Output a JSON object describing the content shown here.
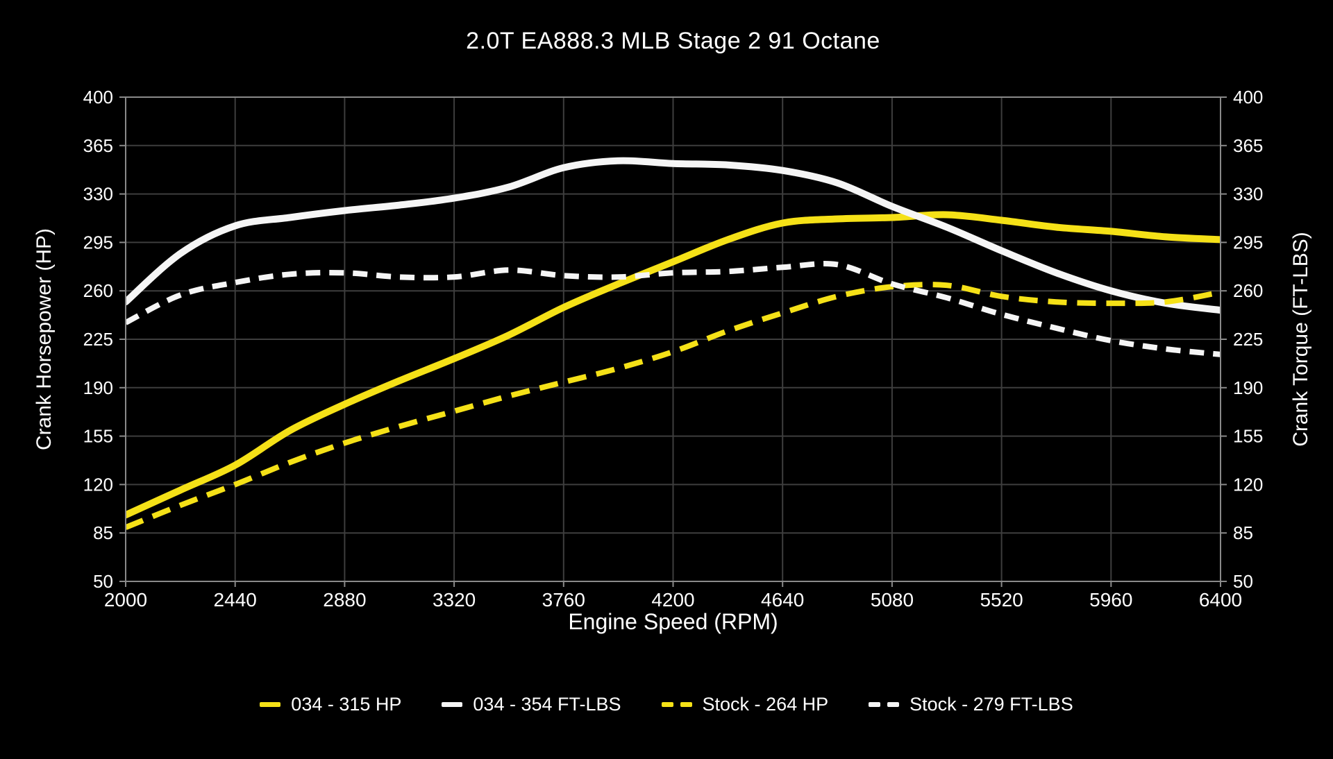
{
  "chart": {
    "title": "2.0T EA888.3 MLB Stage 2 91 Octane"
  },
  "axes": {
    "left_label": "Crank Horsepower (HP)",
    "right_label": "Crank Torque (FT-LBS)",
    "x_label": "Engine Speed (RPM)"
  },
  "colors": {
    "background": "#000000",
    "text": "#ffffff",
    "grid": "#3e3e3e",
    "border": "#8a8a8a",
    "yellow": "#f5e117",
    "white": "#f5f5f5"
  },
  "legend": {
    "items": [
      {
        "label": "034 - 315 HP",
        "color": "#f5e117",
        "style": "solid"
      },
      {
        "label": "034 - 354 FT-LBS",
        "color": "#f5f5f5",
        "style": "solid"
      },
      {
        "label": "Stock - 264 HP",
        "color": "#f5e117",
        "style": "dashed"
      },
      {
        "label": "Stock - 279 FT-LBS",
        "color": "#f5f5f5",
        "style": "dashed"
      }
    ]
  },
  "chart_data": {
    "type": "line",
    "title": "2.0T EA888.3 MLB Stage 2 91 Octane",
    "xlabel": "Engine Speed (RPM)",
    "ylabel_left": "Crank Horsepower (HP)",
    "ylabel_right": "Crank Torque (FT-LBS)",
    "xlim": [
      2000,
      6400
    ],
    "ylim": [
      50,
      400
    ],
    "x_ticks": [
      2000,
      2440,
      2880,
      3320,
      3760,
      4200,
      4640,
      5080,
      5520,
      5960,
      6400
    ],
    "y_ticks": [
      50,
      85,
      120,
      155,
      190,
      225,
      260,
      295,
      330,
      365,
      400
    ],
    "grid": true,
    "legend_position": "bottom",
    "x": [
      2000,
      2220,
      2440,
      2660,
      2880,
      3100,
      3320,
      3540,
      3760,
      3980,
      4200,
      4420,
      4640,
      4860,
      5080,
      5300,
      5520,
      5740,
      5960,
      6180,
      6400
    ],
    "series": [
      {
        "name": "034 - 315 HP",
        "axis": "HP",
        "peak": 315,
        "color": "#f5e117",
        "style": "solid",
        "width": 10,
        "values": [
          98,
          116,
          134,
          159,
          178,
          195,
          211,
          228,
          248,
          265,
          281,
          297,
          309,
          312,
          313,
          315,
          311,
          306,
          303,
          299,
          297
        ]
      },
      {
        "name": "034 - 354 FT-LBS",
        "axis": "FT-LBS",
        "peak": 354,
        "color": "#f5f5f5",
        "style": "solid",
        "width": 10,
        "values": [
          252,
          287,
          307,
          313,
          318,
          322,
          327,
          335,
          349,
          354,
          352,
          351,
          347,
          338,
          321,
          306,
          289,
          273,
          260,
          251,
          246
        ]
      },
      {
        "name": "Stock - 264 HP",
        "axis": "HP",
        "peak": 264,
        "color": "#f5e117",
        "style": "dashed",
        "dash": "27 15",
        "width": 8,
        "values": [
          89,
          105,
          120,
          136,
          150,
          162,
          173,
          184,
          194,
          204,
          216,
          231,
          244,
          256,
          263,
          264,
          256,
          252,
          251,
          252,
          259
        ]
      },
      {
        "name": "Stock - 279 FT-LBS",
        "axis": "FT-LBS",
        "peak": 279,
        "color": "#f5f5f5",
        "style": "dashed",
        "dash": "21 13",
        "width": 8,
        "values": [
          237,
          257,
          266,
          272,
          273,
          270,
          270,
          275,
          271,
          270,
          273,
          274,
          277,
          279,
          265,
          255,
          243,
          233,
          224,
          218,
          214
        ]
      }
    ]
  }
}
